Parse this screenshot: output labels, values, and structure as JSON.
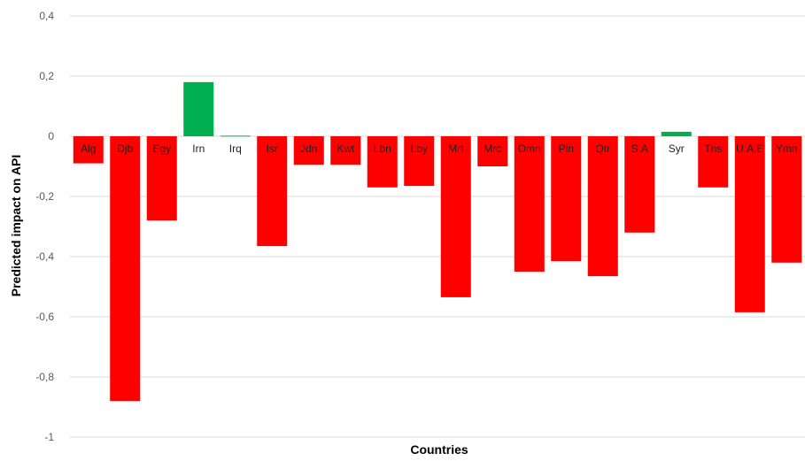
{
  "chart_data": {
    "type": "bar",
    "title": "",
    "xlabel": "Countries",
    "ylabel": "Predicted impact on  API",
    "ylim": [
      -1,
      0.4
    ],
    "yticks": [
      0.4,
      0.2,
      0,
      -0.2,
      -0.4,
      -0.6,
      -0.8,
      -1
    ],
    "ytick_labels": [
      "0,4",
      "0,2",
      "0",
      "-0,2",
      "-0,4",
      "-0,6",
      "-0,8",
      "-1"
    ],
    "grid": true,
    "legend": "none",
    "categories": [
      "Alg",
      "Djb",
      "Egy",
      "Irn",
      "Irq",
      "Isr",
      "Jdn",
      "Kwt",
      "Lbn",
      "Lby",
      "Mrt",
      "Mrc",
      "Omn",
      "Pln",
      "Qtr",
      "S.A",
      "Syr",
      "Tns",
      "U.A.E",
      "Ymn"
    ],
    "values": [
      -0.09,
      -0.88,
      -0.28,
      0.18,
      0.002,
      -0.365,
      -0.095,
      -0.095,
      -0.17,
      -0.165,
      -0.535,
      -0.1,
      -0.45,
      -0.415,
      -0.465,
      -0.32,
      0.015,
      -0.17,
      -0.585,
      -0.42
    ],
    "colors": {
      "negative": "#ff0000",
      "positive": "#00b050",
      "grid": "#d9d9d9",
      "tick_text": "#595959"
    }
  }
}
